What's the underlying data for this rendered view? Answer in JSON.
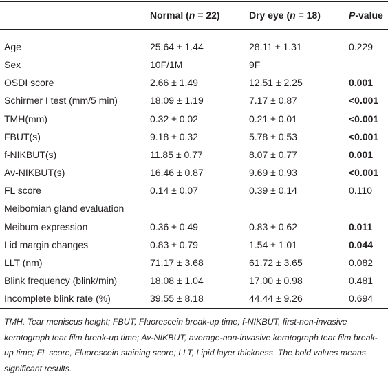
{
  "header": {
    "columns": [
      [
        "Normal (",
        "n",
        " = 22)"
      ],
      [
        "Dry eye (",
        "n",
        " = 18)"
      ],
      [
        "P",
        "-value"
      ]
    ]
  },
  "table": {
    "rows": [
      {
        "label": "Age",
        "normal": "25.64 ± 1.44",
        "dry": "28.11 ± 1.31",
        "p": "0.229",
        "bold": false
      },
      {
        "label": "Sex",
        "normal": "10F/1M",
        "dry": "9F",
        "bold": false
      },
      {
        "label": "OSDI score",
        "normal": "2.66 ± 1.49",
        "dry": "12.51 ± 2.25",
        "p": "0.001",
        "bold": true
      },
      {
        "label": "Schirmer I test (mm/5 min)",
        "normal": "18.09 ± 1.19",
        "dry": "7.17 ± 0.87",
        "p": "<0.001",
        "bold": true
      },
      {
        "label": "TMH(mm)",
        "normal": "0.32 ± 0.02",
        "dry": "0.21 ± 0.01",
        "p": "<0.001",
        "bold": true
      },
      {
        "label": "FBUT(s)",
        "normal": "9.18 ± 0.32",
        "dry": "5.78 ± 0.53",
        "p": "<0.001",
        "bold": true
      },
      {
        "label": "f-NIKBUT(s)",
        "normal": "11.85 ± 0.77",
        "dry": "8.07 ± 0.77",
        "p": "0.001",
        "bold": true
      },
      {
        "label": "Av-NIKBUT(s)",
        "normal": "16.46 ± 0.87",
        "dry": "9.69 ± 0.93",
        "p": "<0.001",
        "bold": true
      },
      {
        "label": "FL score",
        "normal": "0.14 ± 0.07",
        "dry": "0.39 ± 0.14",
        "p": "0.110",
        "bold": false
      },
      {
        "label": "Meibomian gland evaluation",
        "bold": false
      },
      {
        "label": "Meibum expression",
        "normal": "0.36 ± 0.49",
        "dry": "0.83 ± 0.62",
        "p": "0.011",
        "bold": true
      },
      {
        "label": "Lid margin changes",
        "normal": "0.83 ± 0.79",
        "dry": "1.54 ± 1.01",
        "p": "0.044",
        "bold": true
      },
      {
        "label": "LLT (nm)",
        "normal": "71.17 ± 3.68",
        "dry": "61.72 ± 3.65",
        "p": "0.082",
        "bold": false
      },
      {
        "label": "Blink frequency (blink/min)",
        "normal": "18.08 ± 1.04",
        "dry": "17.00 ± 0.98",
        "p": "0.481",
        "bold": false
      },
      {
        "label": "Incomplete blink rate (%)",
        "normal": "39.55 ± 8.18",
        "dry": "44.44 ± 9.26",
        "p": "0.694",
        "bold": false
      }
    ]
  },
  "footnote": "TMH, Tear meniscus height; FBUT, Fluorescein break-up time; f-NIKBUT, first-non-invasive keratograph tear film break-up time; Av-NIKBUT, average-non-invasive keratograph tear film break-up time; FL score, Fluorescein staining score; LLT, Lipid layer thickness. The bold values means significant results."
}
